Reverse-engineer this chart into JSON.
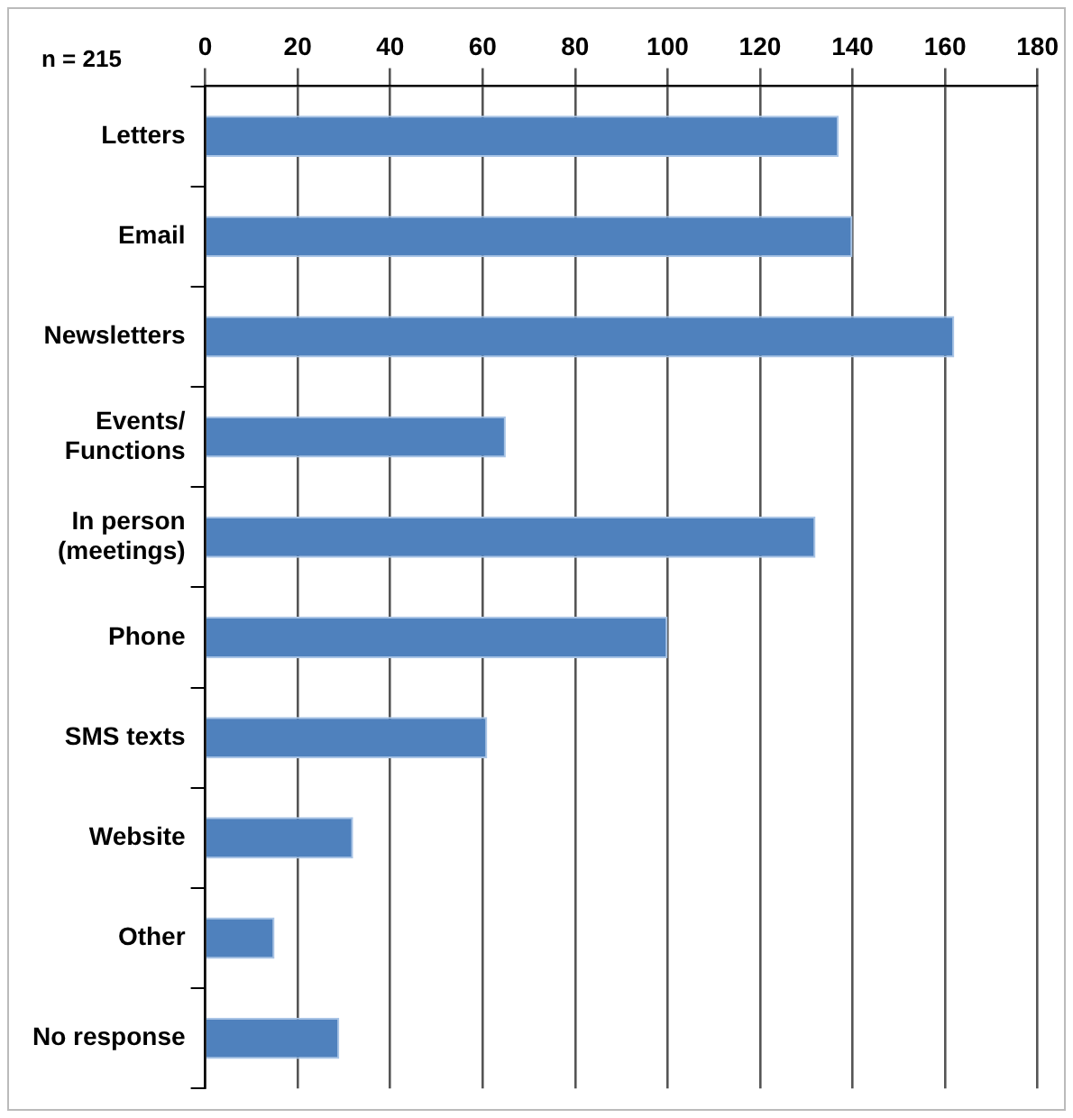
{
  "chart_data": {
    "type": "bar",
    "orientation": "horizontal",
    "categories": [
      "Letters",
      "Email",
      "Newsletters",
      "Events/\nFunctions",
      "In person\n(meetings)",
      "Phone",
      "SMS texts",
      "Website",
      "Other",
      "No response"
    ],
    "values": [
      137,
      140,
      162,
      65,
      132,
      100,
      61,
      32,
      15,
      29
    ],
    "color": "#4f81bd",
    "xlim": [
      0,
      180
    ],
    "xticks": [
      0,
      20,
      40,
      60,
      80,
      100,
      120,
      140,
      160,
      180
    ],
    "grid": "x",
    "legend": false,
    "annotations": [
      "n = 215"
    ]
  }
}
